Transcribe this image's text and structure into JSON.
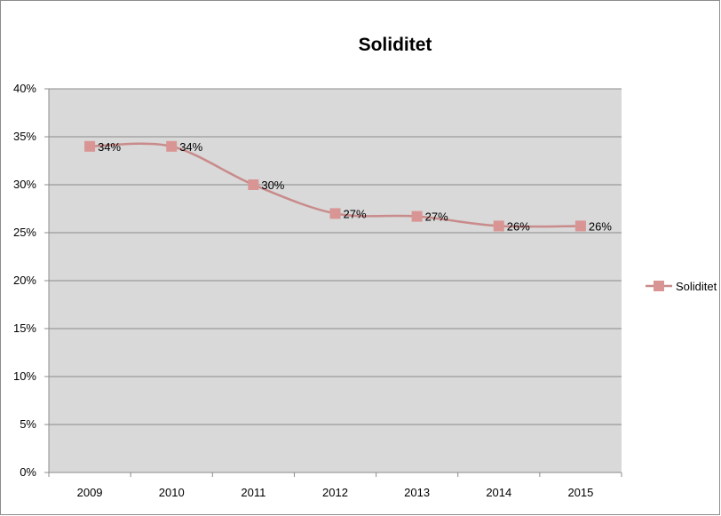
{
  "chart_data": {
    "type": "line",
    "title": "Soliditet",
    "xlabel": "",
    "ylabel": "",
    "categories": [
      "2009",
      "2010",
      "2011",
      "2012",
      "2013",
      "2014",
      "2015"
    ],
    "series": [
      {
        "name": "Soliditet",
        "values": [
          34,
          34,
          30,
          27,
          26.7,
          25.7,
          25.7
        ],
        "data_labels": [
          "34%",
          "34%",
          "30%",
          "27%",
          "27%",
          "26%",
          "26%"
        ]
      }
    ],
    "ylim": [
      0,
      40
    ],
    "yticks": [
      0,
      5,
      10,
      15,
      20,
      25,
      30,
      35,
      40
    ],
    "ytick_labels": [
      "0%",
      "5%",
      "10%",
      "15%",
      "20%",
      "25%",
      "30%",
      "35%",
      "40%"
    ],
    "grid": "horizontal",
    "legend_position": "right",
    "colors": {
      "series": "#c98b8b",
      "marker": "#d99594",
      "plot_background": "#d9d9d9",
      "gridline": "#8c8c8c",
      "axis": "#8c8c8c"
    }
  }
}
